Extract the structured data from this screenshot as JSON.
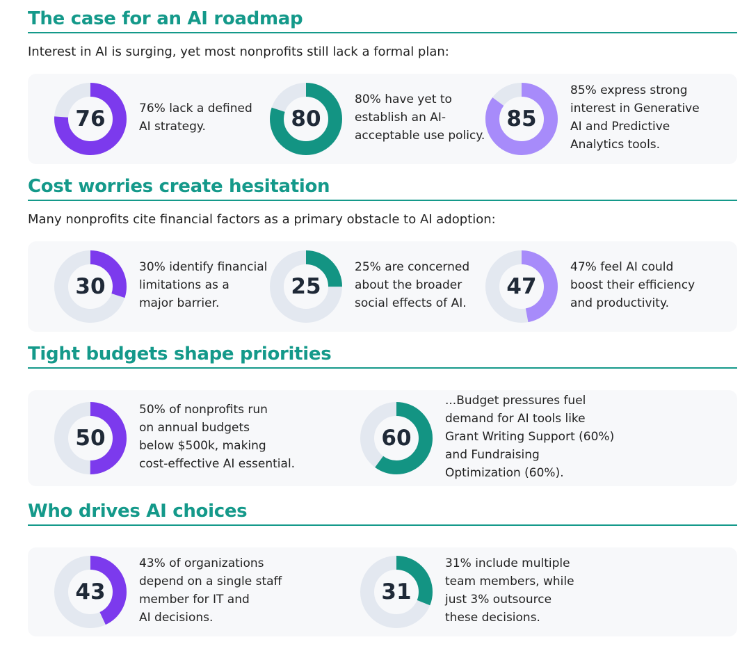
{
  "colors": {
    "purple": "#7c3aed",
    "teal": "#139483",
    "lavender": "#a78bfa",
    "track": "#e3e8f0",
    "heading": "#14998a"
  },
  "sections": [
    {
      "title": "The case for an AI roadmap",
      "subtitle": "Interest in AI is surging, yet most nonprofits still lack a formal plan:"
    },
    {
      "title": "Cost worries create hesitation",
      "subtitle": "Many nonprofits cite financial factors as a primary obstacle to AI adoption:"
    },
    {
      "title": "Tight budgets shape priorities",
      "subtitle": ""
    },
    {
      "title": "Who drives AI choices",
      "subtitle": ""
    }
  ],
  "chart_data": [
    {
      "type": "pie",
      "variant": "donut",
      "value": 76,
      "max": 100,
      "color": "purple",
      "label": "76% lack a defined\nAI strategy."
    },
    {
      "type": "pie",
      "variant": "donut",
      "value": 80,
      "max": 100,
      "color": "teal",
      "label": "80% have yet to\nestablish an AI-\nacceptable use policy."
    },
    {
      "type": "pie",
      "variant": "donut",
      "value": 85,
      "max": 100,
      "color": "lavender",
      "label": "85% express strong\ninterest in Generative\nAI and Predictive\nAnalytics tools."
    },
    {
      "type": "pie",
      "variant": "donut",
      "value": 30,
      "max": 100,
      "color": "purple",
      "label": "30% identify financial\nlimitations as a\nmajor barrier."
    },
    {
      "type": "pie",
      "variant": "donut",
      "value": 25,
      "max": 100,
      "color": "teal",
      "label": "25% are concerned\nabout the broader\nsocial effects of AI."
    },
    {
      "type": "pie",
      "variant": "donut",
      "value": 47,
      "max": 100,
      "color": "lavender",
      "label": "47% feel AI could\nboost their efficiency\nand productivity."
    },
    {
      "type": "pie",
      "variant": "donut",
      "value": 50,
      "max": 100,
      "color": "purple",
      "label": "50% of nonprofits run\non annual budgets\nbelow $500k, making\ncost-effective AI essential."
    },
    {
      "type": "pie",
      "variant": "donut",
      "value": 60,
      "max": 100,
      "color": "teal",
      "label": "...Budget pressures fuel\ndemand for AI tools like\nGrant Writing Support (60%)\nand Fundraising\nOptimization (60%)."
    },
    {
      "type": "pie",
      "variant": "donut",
      "value": 43,
      "max": 100,
      "color": "purple",
      "label": "43% of organizations\ndepend on a single staff\nmember for IT and\nAI decisions."
    },
    {
      "type": "pie",
      "variant": "donut",
      "value": 31,
      "max": 100,
      "color": "teal",
      "label": "31% include multiple\nteam members, while\njust 3% outsource\nthese decisions."
    }
  ]
}
